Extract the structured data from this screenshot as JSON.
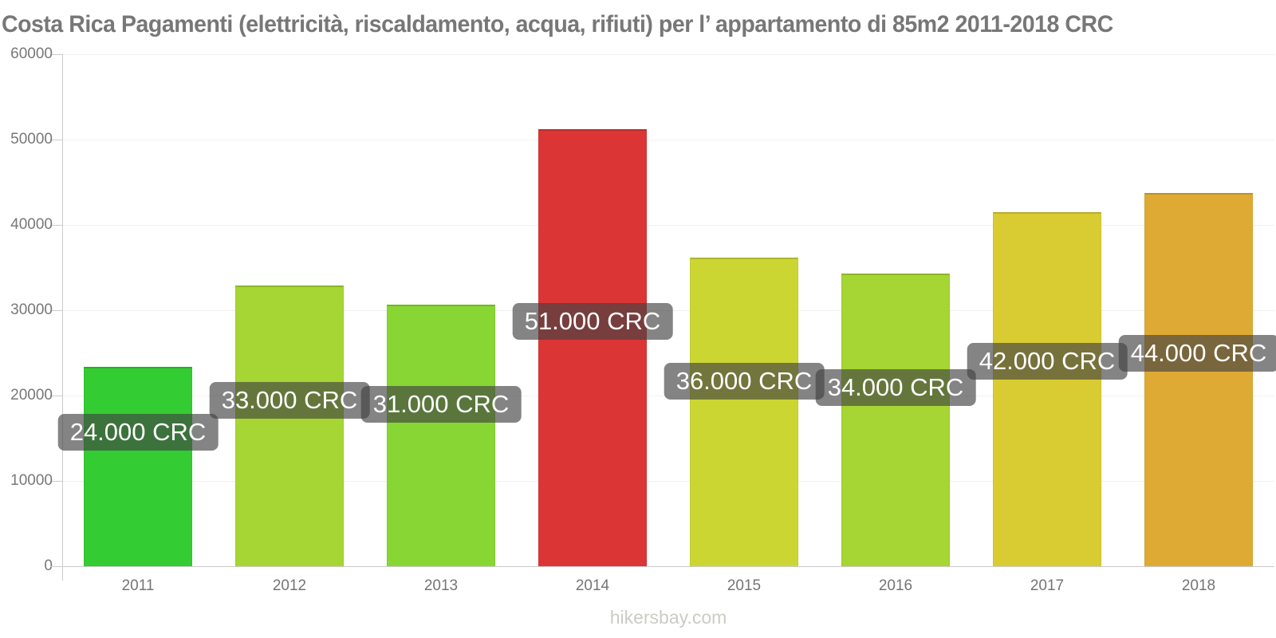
{
  "page": {
    "footer": "hikersbay.com"
  },
  "chart_data": {
    "type": "bar",
    "title": "Costa Rica Pagamenti (elettricità, riscaldamento, acqua, rifiuti) per l’ appartamento di 85m2 2011-2018 CRC",
    "xlabel": "",
    "ylabel": "",
    "categories": [
      "2011",
      "2012",
      "2013",
      "2014",
      "2015",
      "2016",
      "2017",
      "2018"
    ],
    "values": [
      24000,
      33000,
      31000,
      51000,
      36000,
      34000,
      42000,
      44000
    ],
    "bar_values_rendered": [
      23400,
      32900,
      30650,
      51200,
      36150,
      34300,
      41450,
      43700
    ],
    "bar_labels": [
      "24.000 CRC",
      "33.000 CRC",
      "31.000 CRC",
      "51.000 CRC",
      "36.000 CRC",
      "34.000 CRC",
      "42.000 CRC",
      "44.000 CRC"
    ],
    "bar_colors": [
      "#33cc33",
      "#a5d633",
      "#88d633",
      "#dc3535",
      "#ccd633",
      "#a5d633",
      "#d9cc33",
      "#dfaa33"
    ],
    "unit": "CRC",
    "ylim": [
      0,
      60000
    ],
    "yticks": [
      0,
      10000,
      20000,
      30000,
      40000,
      50000,
      60000
    ],
    "grid": true,
    "legend": false,
    "watermark": "hikersbay.com",
    "colors": {
      "title_text": "#777777",
      "axis_line": "#cccccc",
      "gridline": "#f0f0ee",
      "tick_text": "#787878",
      "label_pill_bg": "rgba(66,66,66,0.65)",
      "label_pill_text": "#ffffff",
      "watermark_text": "#ccccc3"
    }
  }
}
